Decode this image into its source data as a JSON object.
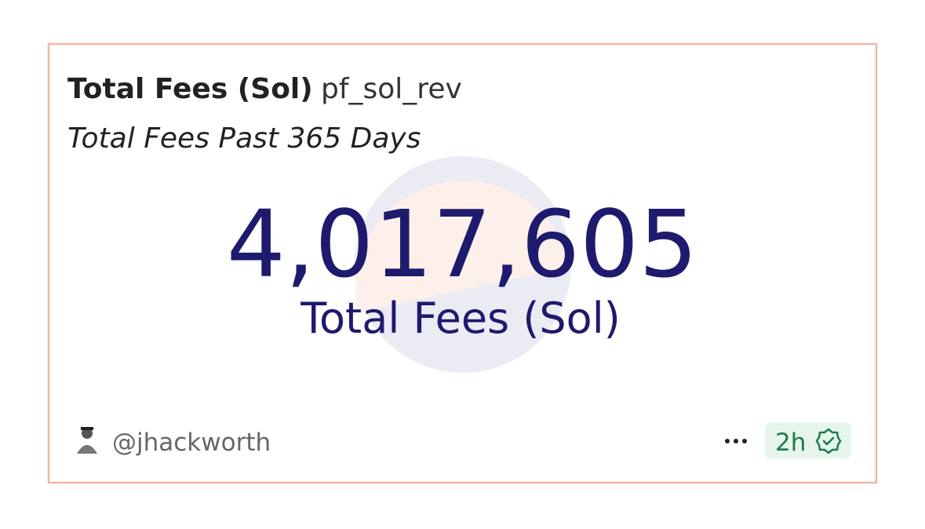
{
  "header": {
    "title": "Total Fees (Sol)",
    "query_name": "pf_sol_rev",
    "subtitle": "Total Fees Past 365 Days"
  },
  "counter": {
    "value": "4,017,605",
    "label": "Total Fees (Sol)"
  },
  "footer": {
    "author": "@jhackworth",
    "age": "2h"
  }
}
